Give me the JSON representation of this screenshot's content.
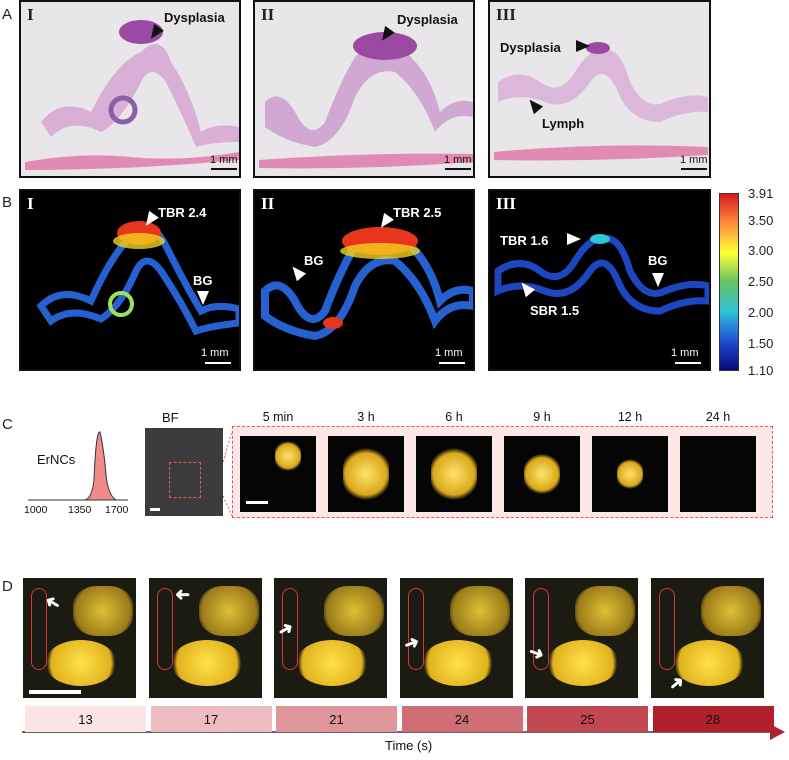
{
  "panels": {
    "A": {
      "letter": "A",
      "tiles": [
        {
          "roman": "I",
          "labels": [
            "Dysplasia"
          ],
          "scale": "1 mm"
        },
        {
          "roman": "II",
          "labels": [
            "Dysplasia"
          ],
          "scale": "1 mm"
        },
        {
          "roman": "III",
          "labels": [
            "Dysplasia",
            "Lymph"
          ],
          "scale": "1 mm"
        }
      ]
    },
    "B": {
      "letter": "B",
      "tiles": [
        {
          "roman": "I",
          "labels": [
            "TBR 2.4",
            "BG"
          ],
          "scale": "1 mm"
        },
        {
          "roman": "II",
          "labels": [
            "TBR 2.5",
            "BG"
          ],
          "scale": "1 mm"
        },
        {
          "roman": "III",
          "labels": [
            "TBR 1.6",
            "BG",
            "SBR 1.5"
          ],
          "scale": "1 mm"
        }
      ],
      "colorbar": {
        "ticks": [
          "3.91",
          "3.50",
          "3.00",
          "2.50",
          "2.00",
          "1.50",
          "1.10"
        ],
        "colors": [
          "#d7191c",
          "#fd8d3c",
          "#ffff33",
          "#66c164",
          "#2ec4d9",
          "#1f4fd6",
          "#08087a"
        ]
      }
    },
    "C": {
      "letter": "C",
      "spectrum_label": "ErNCs",
      "spectrum_ticks": [
        "1000",
        "1350",
        "1700"
      ],
      "bf_label": "BF",
      "frames": [
        {
          "time": "5 min",
          "signal": 0.35
        },
        {
          "time": "3 h",
          "signal": 0.9
        },
        {
          "time": "6 h",
          "signal": 0.9
        },
        {
          "time": "9 h",
          "signal": 0.6
        },
        {
          "time": "12 h",
          "signal": 0.35
        },
        {
          "time": "24 h",
          "signal": 0
        }
      ]
    },
    "D": {
      "letter": "D",
      "times": [
        "13",
        "17",
        "21",
        "24",
        "25",
        "28"
      ],
      "axis_label": "Time (s)",
      "gradient": [
        "#fde4e4",
        "#b2202c"
      ]
    }
  }
}
